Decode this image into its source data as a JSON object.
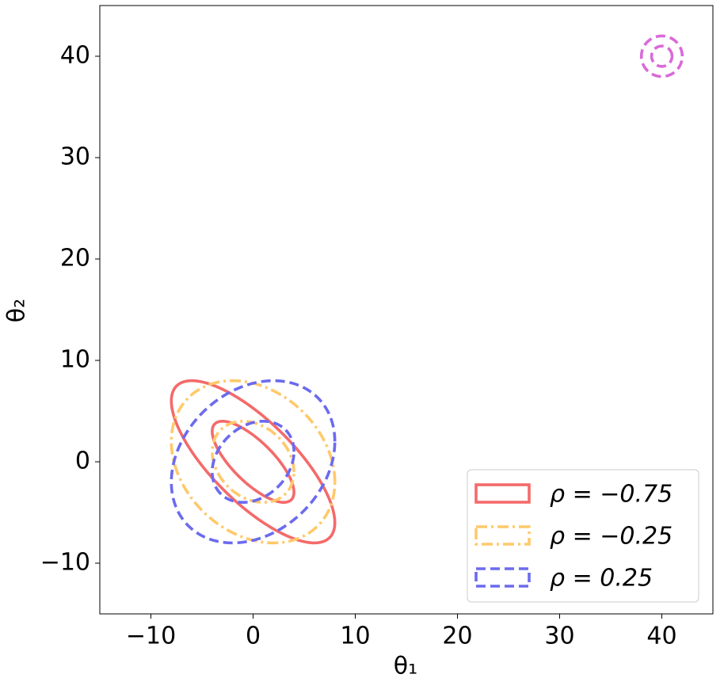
{
  "chart_data": {
    "type": "contour",
    "xlabel": "θ₁",
    "ylabel": "θ₂",
    "xlim": [
      -15,
      45
    ],
    "ylim": [
      -15,
      45
    ],
    "xticks": [
      {
        "value": -10,
        "label": "−10"
      },
      0,
      10,
      20,
      30,
      40
    ],
    "yticks": [
      {
        "value": -10,
        "label": "−10"
      },
      0,
      10,
      20,
      30,
      40
    ],
    "legend": "lower right",
    "series": [
      {
        "name": "ρ = −0.75",
        "color": "#f46a6a",
        "dash": "solid",
        "center": [
          0,
          0
        ],
        "rho": -0.75,
        "levels": [
          4,
          8
        ]
      },
      {
        "name": "ρ = −0.25",
        "color": "#ffc96b",
        "dash": "dashdot",
        "center": [
          0,
          0
        ],
        "rho": -0.25,
        "levels": [
          4,
          8
        ]
      },
      {
        "name": "ρ = 0.25",
        "color": "#6b6bef",
        "dash": "dashed",
        "center": [
          0,
          0
        ],
        "rho": 0.25,
        "levels": [
          4,
          8
        ]
      },
      {
        "color": "#d96ad9",
        "dash": "dashed",
        "center": [
          40,
          40
        ],
        "rho": 0,
        "levels": [
          1,
          2
        ]
      }
    ]
  }
}
